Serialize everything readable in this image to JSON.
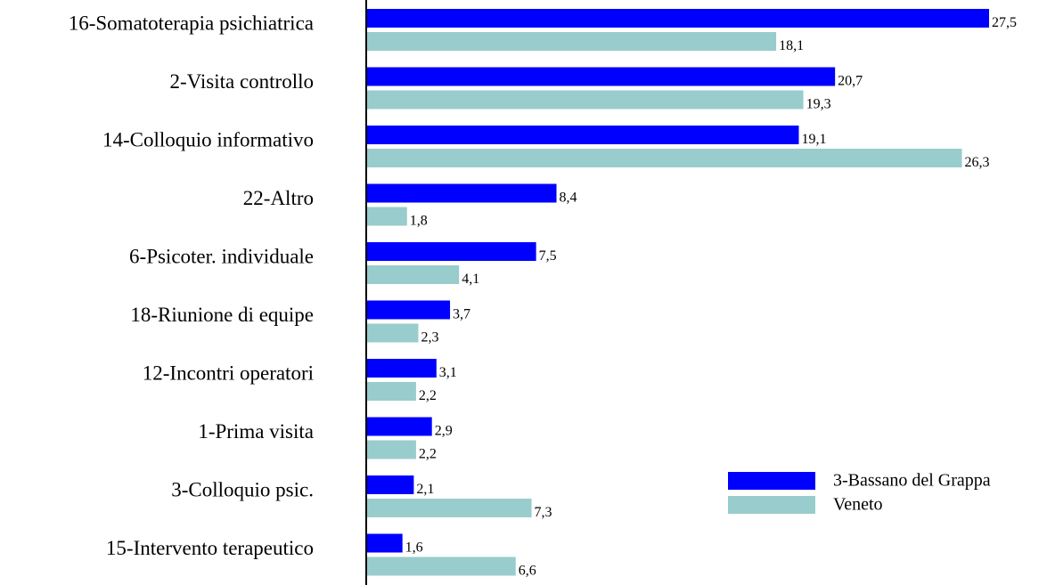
{
  "chart_data": {
    "type": "bar",
    "orientation": "horizontal",
    "categories": [
      "16-Somatoterapia psichiatrica",
      "2-Visita controllo",
      "14-Colloquio informativo",
      "22-Altro",
      "6-Psicoter. individuale",
      "18-Riunione di equipe",
      "12-Incontri operatori",
      "1-Prima visita",
      "3-Colloquio psic.",
      "15-Intervento terapeutico"
    ],
    "series": [
      {
        "name": "3-Bassano del Grappa",
        "color": "#0000ff",
        "values": [
          27.5,
          20.7,
          19.1,
          8.4,
          7.5,
          3.7,
          3.1,
          2.9,
          2.1,
          1.6
        ],
        "value_labels": [
          "27,5",
          "20,7",
          "19,1",
          "8,4",
          "7,5",
          "3,7",
          "3,1",
          "2,9",
          "2,1",
          "1,6"
        ]
      },
      {
        "name": "Veneto",
        "color": "#99cccc",
        "values": [
          18.1,
          19.3,
          26.3,
          1.8,
          4.1,
          2.3,
          2.2,
          2.2,
          7.3,
          6.6
        ],
        "value_labels": [
          "18,1",
          "19,3",
          "26,3",
          "1,8",
          "4,1",
          "2,3",
          "2,2",
          "2,2",
          "7,3",
          "6,6"
        ]
      }
    ],
    "legend": "lower right"
  }
}
